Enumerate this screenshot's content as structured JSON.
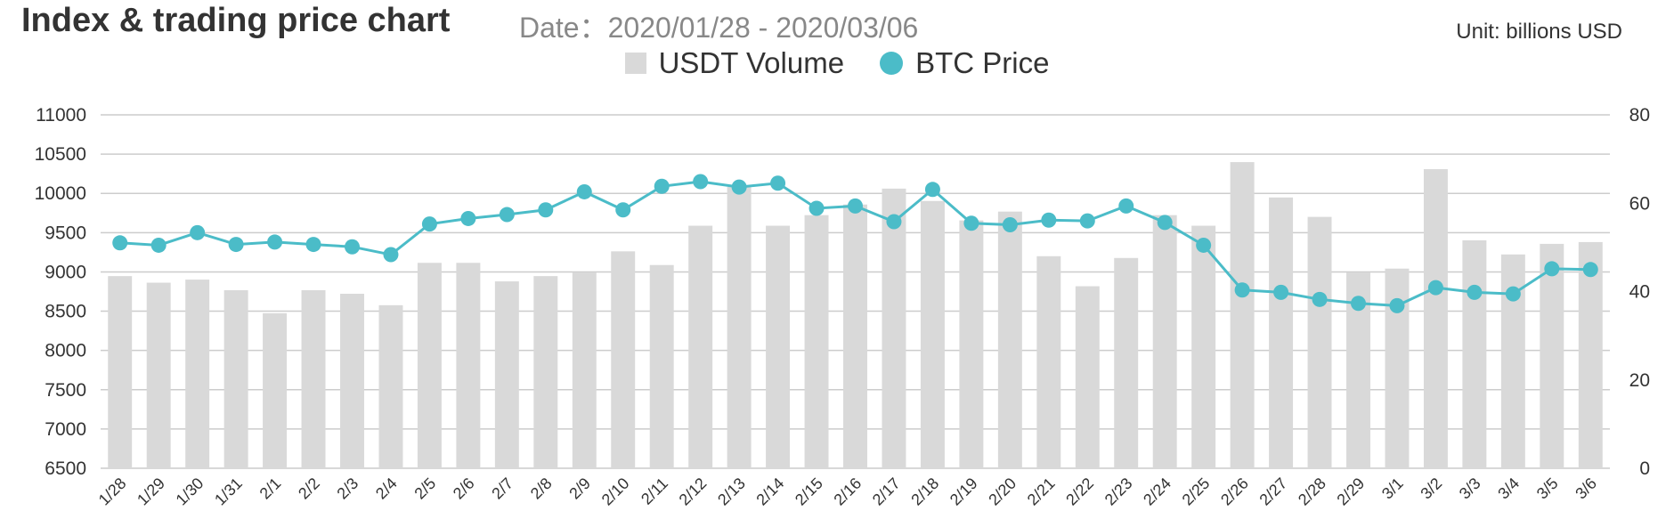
{
  "header": {
    "title": "Index & trading price chart",
    "date_range": "Date：2020/01/28 - 2020/03/06",
    "unit": "Unit: billions USD"
  },
  "colors": {
    "bar": "#d9d9d9",
    "line": "#4bbcc8",
    "grid": "#cccccc"
  },
  "chart_data": {
    "type": "bar+line",
    "title": "Index & trading price chart",
    "categories": [
      "1/28",
      "1/29",
      "1/30",
      "1/31",
      "2/1",
      "2/2",
      "2/3",
      "2/4",
      "2/5",
      "2/6",
      "2/7",
      "2/8",
      "2/9",
      "2/10",
      "2/11",
      "2/12",
      "2/13",
      "2/14",
      "2/15",
      "2/16",
      "2/17",
      "2/18",
      "2/19",
      "2/20",
      "2/21",
      "2/22",
      "2/23",
      "2/24",
      "2/25",
      "2/26",
      "2/27",
      "2/28",
      "2/29",
      "3/1",
      "3/2",
      "3/3",
      "3/4",
      "3/5",
      "3/6"
    ],
    "series": [
      {
        "name": "USDT Volume",
        "type": "bar",
        "axis": "right",
        "values": [
          43.5,
          42.0,
          42.7,
          40.3,
          35.1,
          40.3,
          39.5,
          36.9,
          46.5,
          46.5,
          42.3,
          43.5,
          44.3,
          49.1,
          46.0,
          54.9,
          63.7,
          54.9,
          57.3,
          59.7,
          63.3,
          60.5,
          56.1,
          58.1,
          48.0,
          41.2,
          47.6,
          57.3,
          54.9,
          69.3,
          61.3,
          56.9,
          44.3,
          45.2,
          67.7,
          51.6,
          48.4,
          50.8,
          51.2
        ]
      },
      {
        "name": "BTC Price",
        "type": "line",
        "axis": "left",
        "values": [
          9370,
          9340,
          9500,
          9350,
          9380,
          9350,
          9320,
          9220,
          9610,
          9680,
          9730,
          9790,
          10020,
          9790,
          10090,
          10150,
          10080,
          10130,
          9810,
          9840,
          9640,
          10050,
          9620,
          9600,
          9660,
          9650,
          9840,
          9630,
          9340,
          8770,
          8740,
          8650,
          8600,
          8570,
          8800,
          8740,
          8720,
          9040,
          9030
        ]
      }
    ],
    "y_left": {
      "min": 6500,
      "max": 11000,
      "ticks": [
        6500,
        7000,
        7500,
        8000,
        8500,
        9000,
        9500,
        10000,
        10500,
        11000
      ]
    },
    "y_right": {
      "min": 0,
      "max": 80,
      "ticks": [
        0,
        20,
        40,
        60,
        80
      ]
    },
    "grid": true,
    "legend": "top-center"
  }
}
